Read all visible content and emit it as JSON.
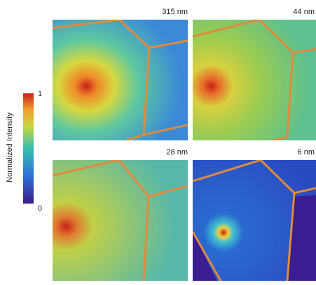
{
  "colorbar": {
    "label": "Normalized Intensity",
    "ticks": [
      1,
      0
    ]
  },
  "panels": [
    {
      "label": "315 nm"
    },
    {
      "label": "44 nm"
    },
    {
      "label": "28 nm"
    },
    {
      "label": "6 nm"
    }
  ]
}
